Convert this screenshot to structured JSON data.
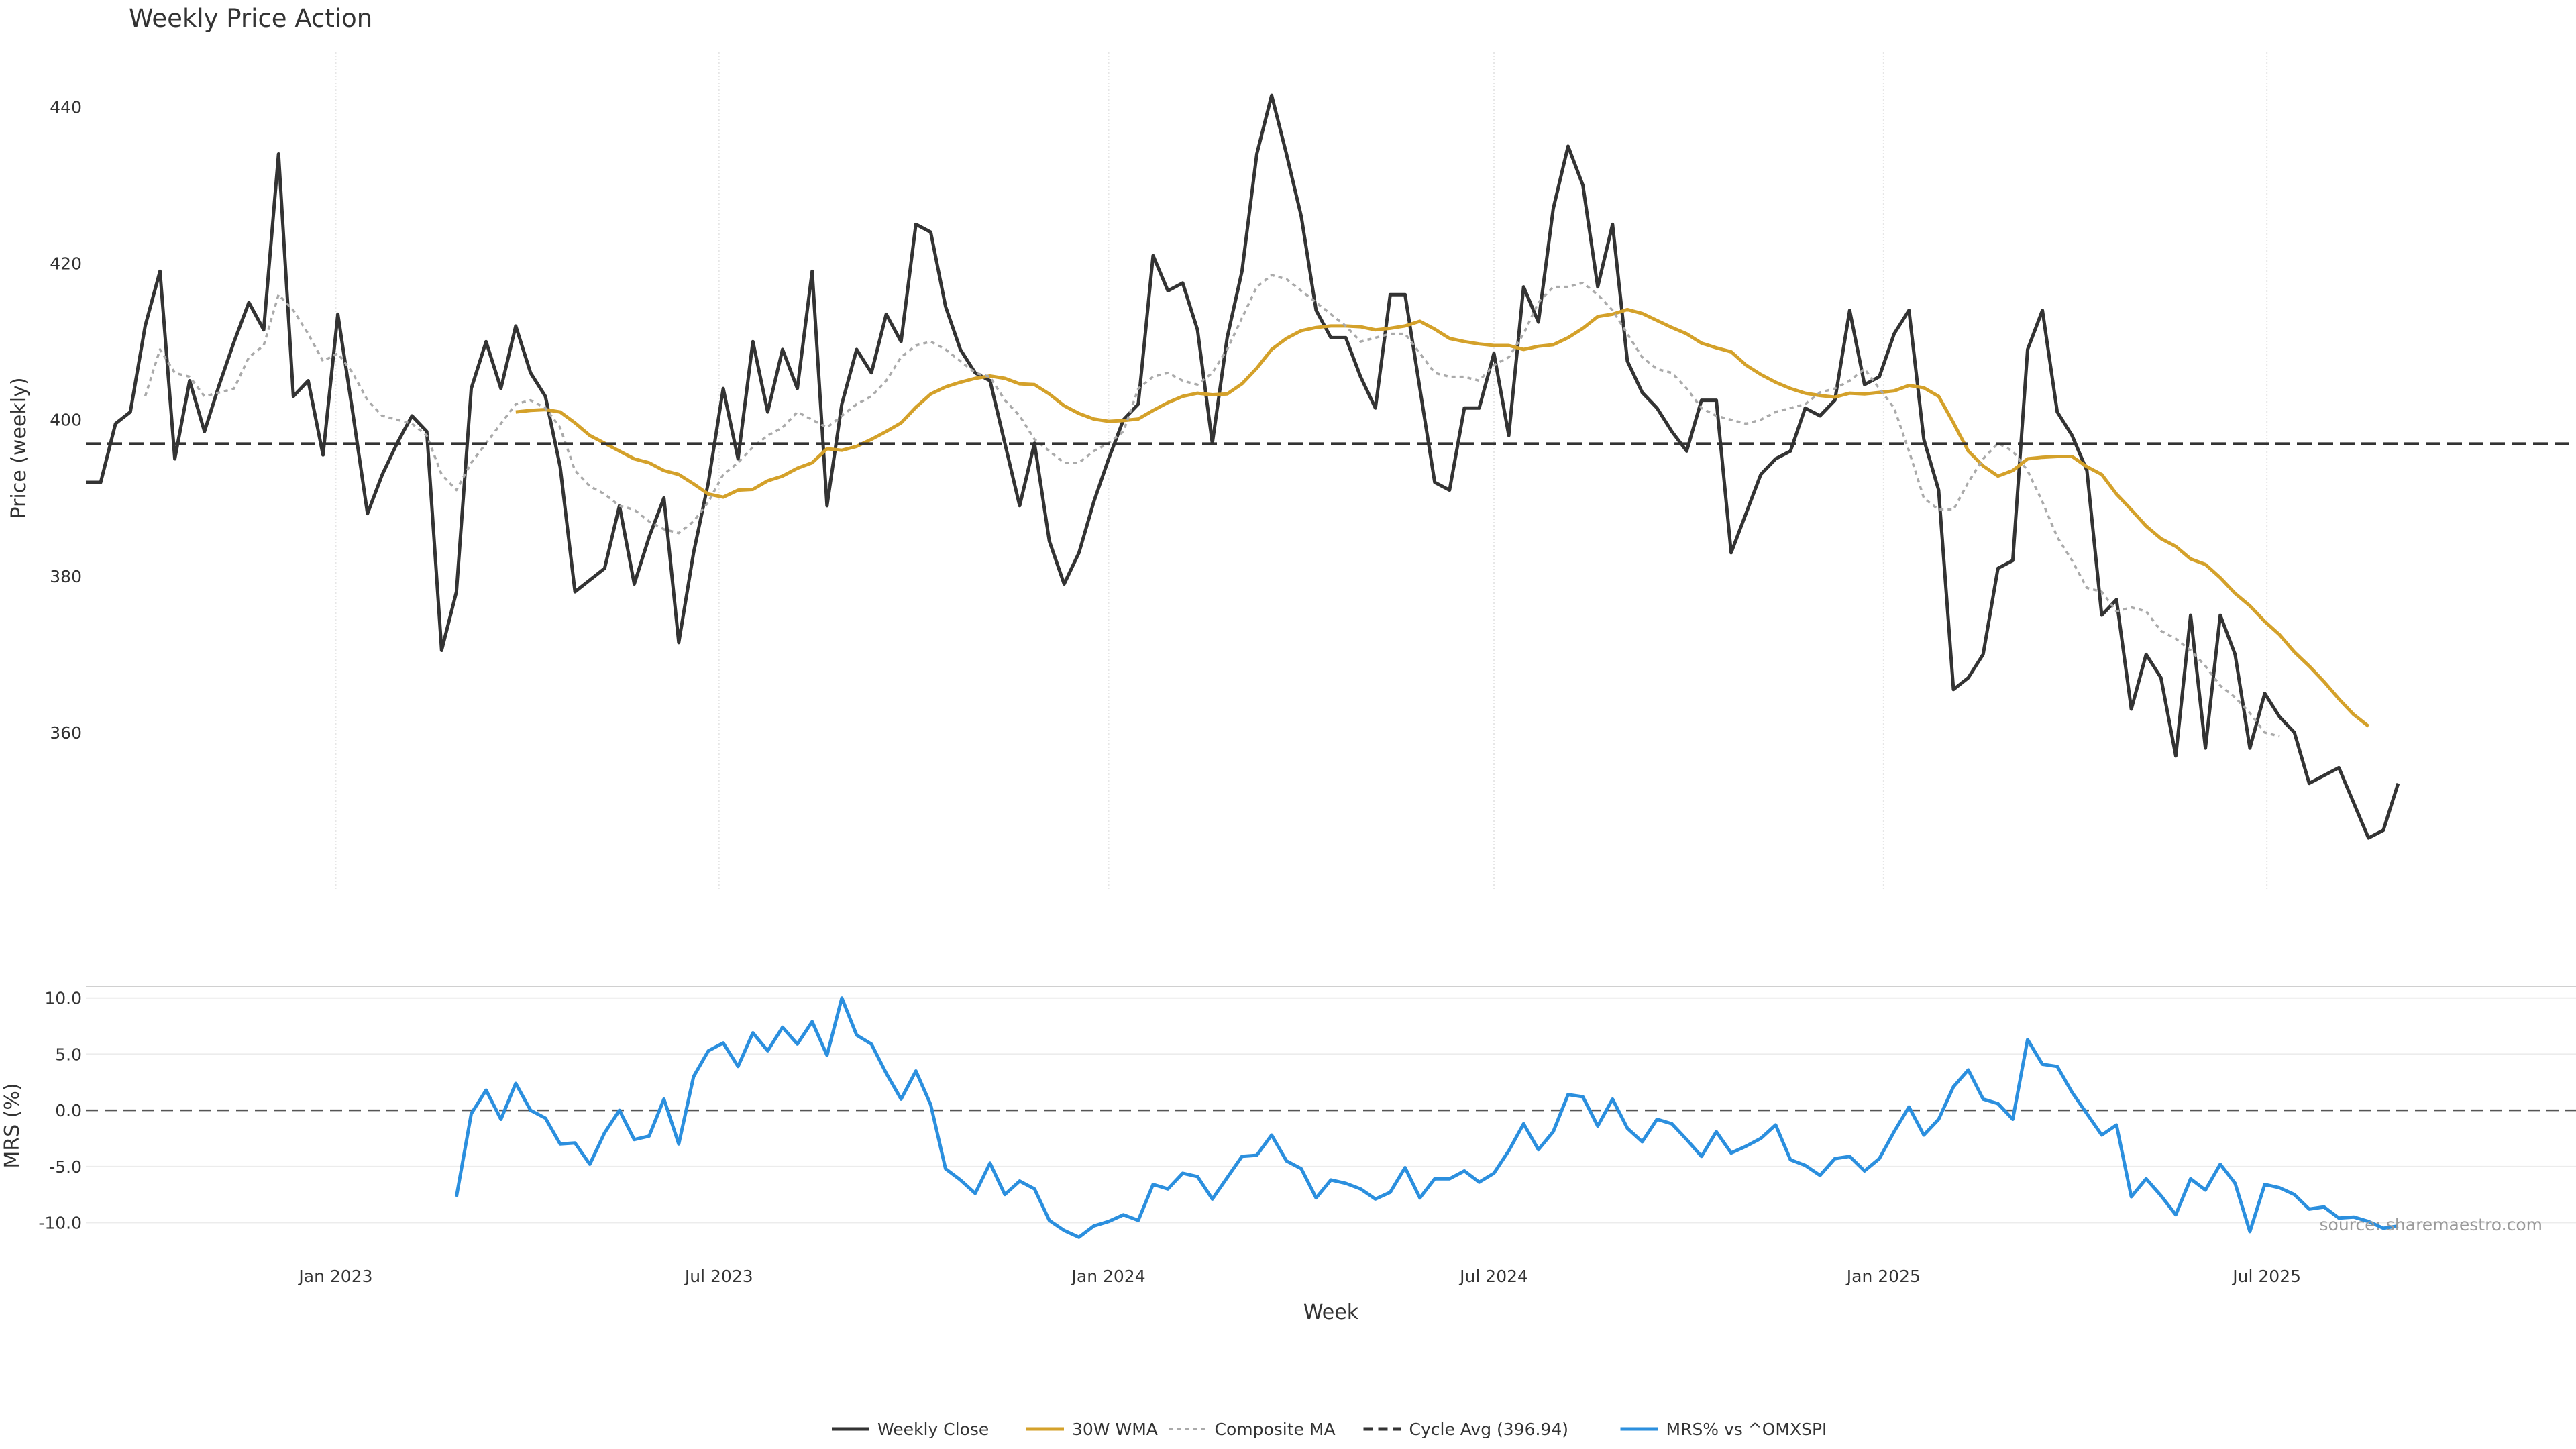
{
  "chart_data": [
    {
      "type": "line",
      "title": "Weekly Price Action",
      "ylabel": "Price (weekly)",
      "xlabel": "",
      "ylim": [
        340,
        447
      ],
      "yticks": [
        360,
        380,
        400,
        420,
        440
      ],
      "x_start": "2022-09-05",
      "x_end": "2025-11-24",
      "x_step_days": 7,
      "xtick_dates": [
        "2023-01-01",
        "2023-07-01",
        "2024-01-01",
        "2024-07-01",
        "2025-01-01",
        "2025-07-01"
      ],
      "grid": "vertical",
      "series": [
        {
          "name": "Weekly Close",
          "color": "#333333",
          "style": "solid",
          "values": [
            392,
            392,
            399.5,
            401,
            412,
            419,
            395,
            405,
            398.5,
            404.5,
            410,
            415,
            411.5,
            434,
            403,
            405,
            395.5,
            413.5,
            401,
            388,
            393,
            397,
            400.5,
            398.5,
            370.5,
            378,
            404,
            410,
            404,
            412,
            406,
            403,
            394,
            378,
            379.5,
            381,
            389,
            379,
            385,
            390,
            371.5,
            383,
            392,
            404,
            395,
            410,
            401,
            409,
            404,
            419,
            389,
            402,
            409,
            406,
            413.5,
            410,
            425,
            424,
            414.5,
            409,
            406,
            405,
            397,
            389,
            397,
            384.5,
            379,
            383,
            389.5,
            395,
            400,
            402,
            421,
            416.5,
            417.5,
            411.5,
            397,
            410.5,
            419,
            434,
            441.5,
            434,
            426,
            414,
            410.5,
            410.5,
            405.5,
            401.5,
            416,
            416,
            404,
            392,
            391,
            401.5,
            401.5,
            408.5,
            398,
            417,
            412.5,
            427,
            435,
            430,
            417,
            425,
            407.5,
            403.5,
            401.5,
            398.5,
            396,
            402.5,
            402.5,
            383,
            388,
            393,
            395,
            396,
            401.5,
            400.5,
            402.5,
            414,
            404.5,
            405.5,
            411,
            414,
            397.5,
            391,
            365.5,
            367,
            370,
            381,
            382,
            409,
            414,
            401,
            398,
            393.5,
            375,
            377,
            363,
            370,
            367,
            357,
            375,
            358,
            375,
            370,
            358,
            365,
            362,
            360,
            353.5,
            354.5,
            355.5,
            351,
            346.5,
            347.5,
            353.5
          ]
        },
        {
          "name": "30W WMA",
          "color": "#d4a12a",
          "style": "solid",
          "values": [
            null,
            null,
            null,
            null,
            null,
            null,
            null,
            null,
            null,
            null,
            null,
            null,
            null,
            null,
            null,
            null,
            null,
            null,
            null,
            null,
            null,
            null,
            null,
            null,
            null,
            null,
            null,
            null,
            null,
            401,
            401.2,
            401.3,
            401,
            399.6,
            398,
            397,
            396,
            395,
            394.5,
            393.5,
            393,
            391.8,
            390.5,
            390.1,
            391,
            391.1,
            392.2,
            392.8,
            393.8,
            394.5,
            396.3,
            396.1,
            396.6,
            397.5,
            398.5,
            399.6,
            401.6,
            403.3,
            404.2,
            404.8,
            405.3,
            405.6,
            405.3,
            404.6,
            404.5,
            403.3,
            401.8,
            400.8,
            400.1,
            399.8,
            399.9,
            400.1,
            401.2,
            402.2,
            403,
            403.4,
            403.2,
            403.3,
            404.6,
            406.6,
            409,
            410.4,
            411.4,
            411.8,
            412,
            412,
            411.9,
            411.5,
            411.7,
            412,
            412.6,
            411.6,
            410.4,
            410,
            409.7,
            409.5,
            409.5,
            409,
            409.4,
            409.6,
            410.5,
            411.7,
            413.2,
            413.5,
            414.1,
            413.6,
            412.7,
            411.8,
            411,
            409.8,
            409.2,
            408.7,
            407,
            405.8,
            404.8,
            404,
            403.4,
            403.1,
            402.9,
            403.4,
            403.3,
            403.5,
            403.7,
            404.4,
            404.1,
            403,
            399.6,
            396,
            394.1,
            392.8,
            393.5,
            395,
            395.2,
            395.3,
            395.3,
            394,
            393,
            390.5,
            388.5,
            386.4,
            384.8,
            383.8,
            382.2,
            381.5,
            379.8,
            377.8,
            376.2,
            374.2,
            372.5,
            370.3,
            368.5,
            366.5,
            364.3,
            362.3,
            360.8
          ]
        },
        {
          "name": "Composite MA",
          "color": "#aaaaaa",
          "style": "dotted",
          "values": [
            null,
            null,
            null,
            null,
            403,
            409,
            406,
            405.5,
            403,
            403.5,
            404,
            408,
            409.5,
            416,
            414,
            411,
            407.5,
            408.5,
            406,
            402.5,
            400.5,
            400,
            399.5,
            398,
            393,
            391,
            394.5,
            397,
            399.5,
            402,
            402.5,
            401.5,
            399,
            393.5,
            391.5,
            390.5,
            389,
            388.5,
            387,
            386,
            385.5,
            387,
            389.5,
            393,
            394.5,
            396.5,
            398,
            399,
            401,
            400,
            399,
            400.5,
            402,
            403,
            405,
            408,
            409.5,
            410,
            409,
            407.5,
            406,
            405.5,
            402.5,
            400.5,
            397.5,
            396,
            394.5,
            394.5,
            396,
            397,
            398.5,
            404,
            405.5,
            406,
            405,
            404.5,
            406,
            409,
            413,
            417,
            418.5,
            418,
            416.5,
            415,
            413.5,
            412,
            410,
            410.5,
            411,
            411,
            408.5,
            406,
            405.5,
            405.5,
            405,
            407,
            408,
            411,
            415,
            417,
            417,
            417.5,
            416,
            414,
            411,
            408,
            406.5,
            406,
            404,
            401.5,
            400.5,
            400,
            399.5,
            400,
            401,
            401.5,
            402,
            403.5,
            404,
            405,
            406.5,
            404,
            401.5,
            396,
            390,
            388.5,
            388.5,
            392,
            395,
            397,
            396,
            393.5,
            389.5,
            385,
            382,
            378.5,
            378,
            375.5,
            376,
            375.5,
            373,
            372,
            370.5,
            368.5,
            366,
            364.5,
            362.5,
            360,
            359.5
          ]
        },
        {
          "name": "Cycle Avg (396.94)",
          "color": "#333333",
          "style": "dashed",
          "constant": 396.94
        }
      ]
    },
    {
      "type": "line",
      "title": "",
      "ylabel": "MRS (%)",
      "xlabel": "Week",
      "ylim": [
        -12,
        11
      ],
      "yticks": [
        -10,
        -5,
        0,
        5,
        10
      ],
      "ytick_labels": [
        "-10.0",
        "-5.0",
        "0.0",
        "5.0",
        "10.0"
      ],
      "xtick_labels": [
        "Jan 2023",
        "Jul 2023",
        "Jan 2024",
        "Jul 2024",
        "Jan 2025",
        "Jul 2025"
      ],
      "grid": "horizontal",
      "series": [
        {
          "name": "MRS% vs ^OMXSPI",
          "color": "#2b8fde",
          "style": "solid",
          "values": [
            null,
            null,
            null,
            null,
            null,
            null,
            null,
            null,
            null,
            null,
            null,
            null,
            null,
            null,
            null,
            null,
            null,
            null,
            null,
            null,
            null,
            null,
            null,
            null,
            null,
            -7.7,
            -0.3,
            1.8,
            -0.8,
            2.4,
            0,
            -0.7,
            -3,
            -2.9,
            -4.8,
            -2,
            0,
            -2.6,
            -2.3,
            1,
            -3,
            3,
            5.3,
            6,
            3.9,
            6.9,
            5.3,
            7.4,
            5.9,
            7.9,
            4.9,
            10,
            6.7,
            5.9,
            3.3,
            1,
            3.5,
            0.5,
            -5.2,
            -6.2,
            -7.4,
            -4.7,
            -7.5,
            -6.3,
            -7,
            -9.8,
            -10.7,
            -11.3,
            -10.3,
            -9.9,
            -9.3,
            -9.8,
            -6.6,
            -7,
            -5.6,
            -5.9,
            -7.9,
            -6,
            -4.1,
            -4,
            -2.2,
            -4.5,
            -5.2,
            -7.8,
            -6.2,
            -6.5,
            -7,
            -7.9,
            -7.3,
            -5.1,
            -7.8,
            -6.1,
            -6.1,
            -5.4,
            -6.4,
            -5.6,
            -3.6,
            -1.2,
            -3.5,
            -1.9,
            1.4,
            1.2,
            -1.4,
            1,
            -1.6,
            -2.8,
            -0.8,
            -1.2,
            -2.6,
            -4.1,
            -1.9,
            -3.8,
            -3.2,
            -2.5,
            -1.3,
            -4.4,
            -4.9,
            -5.8,
            -4.3,
            -4.1,
            -5.4,
            -4.3,
            -1.9,
            0.3,
            -2.2,
            -0.8,
            2.1,
            3.6,
            1,
            0.6,
            -0.8,
            6.3,
            4.1,
            3.9,
            1.6,
            -0.3,
            -2.2,
            -1.3,
            -7.7,
            -6.1,
            -7.6,
            -9.3,
            -6.1,
            -7.1,
            -4.8,
            -6.5,
            -10.8,
            -6.6,
            -6.9,
            -7.5,
            -8.8,
            -8.6,
            -9.6,
            -9.5,
            -9.9,
            -10.5,
            -10.3
          ]
        }
      ]
    }
  ],
  "legend": {
    "placement": "bottom-center",
    "items": [
      {
        "label": "Weekly Close",
        "color": "#333333",
        "style": "solid"
      },
      {
        "label": "30W WMA",
        "color": "#d4a12a",
        "style": "solid"
      },
      {
        "label": "Composite MA",
        "color": "#aaaaaa",
        "style": "dotted"
      },
      {
        "label": "Cycle Avg (396.94)",
        "color": "#333333",
        "style": "dashed"
      },
      {
        "label": "MRS% vs ^OMXSPI",
        "color": "#2b8fde",
        "style": "solid"
      }
    ]
  },
  "source_text": "source: sharemaestro.com"
}
